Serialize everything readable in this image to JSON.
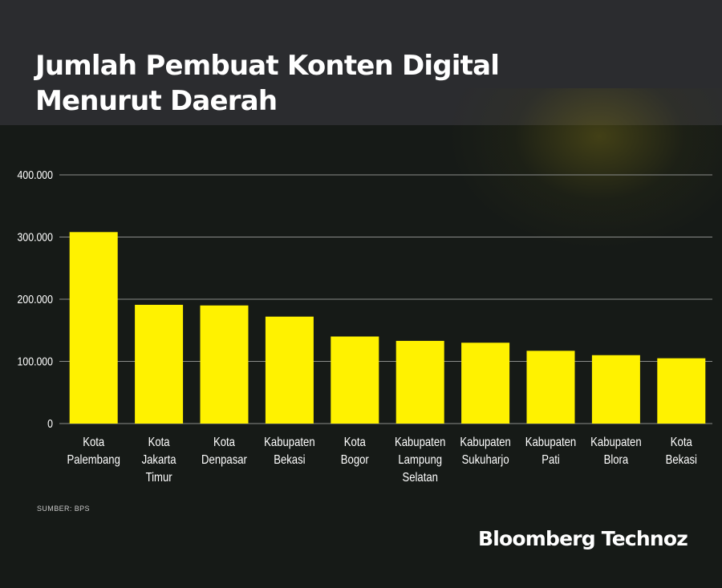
{
  "title_lines": [
    "Jumlah Pembuat Konten Digital",
    "Menurut Daerah"
  ],
  "source": "SUMBER: BPS",
  "brand": "Bloomberg Technoz",
  "colors": {
    "bar": "#fff200",
    "background": "#161a17",
    "header": "#2b2c2f",
    "grid": "#8a8c8a"
  },
  "chart_data": {
    "type": "bar",
    "title": "Jumlah Pembuat Konten Digital Menurut Daerah",
    "categories": [
      [
        "Kota",
        "Palembang"
      ],
      [
        "Kota",
        "Jakarta",
        "Timur"
      ],
      [
        "Kota",
        "Denpasar"
      ],
      [
        "Kabupaten",
        "Bekasi"
      ],
      [
        "Kota",
        "Bogor"
      ],
      [
        "Kabupaten",
        "Lampung",
        "Selatan"
      ],
      [
        "Kabupaten",
        "Sukuharjo"
      ],
      [
        "Kabupaten",
        "Pati"
      ],
      [
        "Kabupaten",
        "Blora"
      ],
      [
        "Kota",
        "Bekasi"
      ]
    ],
    "values": [
      308000,
      191000,
      190000,
      172000,
      140000,
      133000,
      130000,
      117000,
      110000,
      105000
    ],
    "ylim": [
      0,
      400000
    ],
    "yticks": [
      0,
      100000,
      200000,
      300000,
      400000
    ],
    "ytick_labels": [
      "0",
      "100.000",
      "200.000",
      "300.000",
      "400.000"
    ],
    "grid": true,
    "legend": "none"
  }
}
